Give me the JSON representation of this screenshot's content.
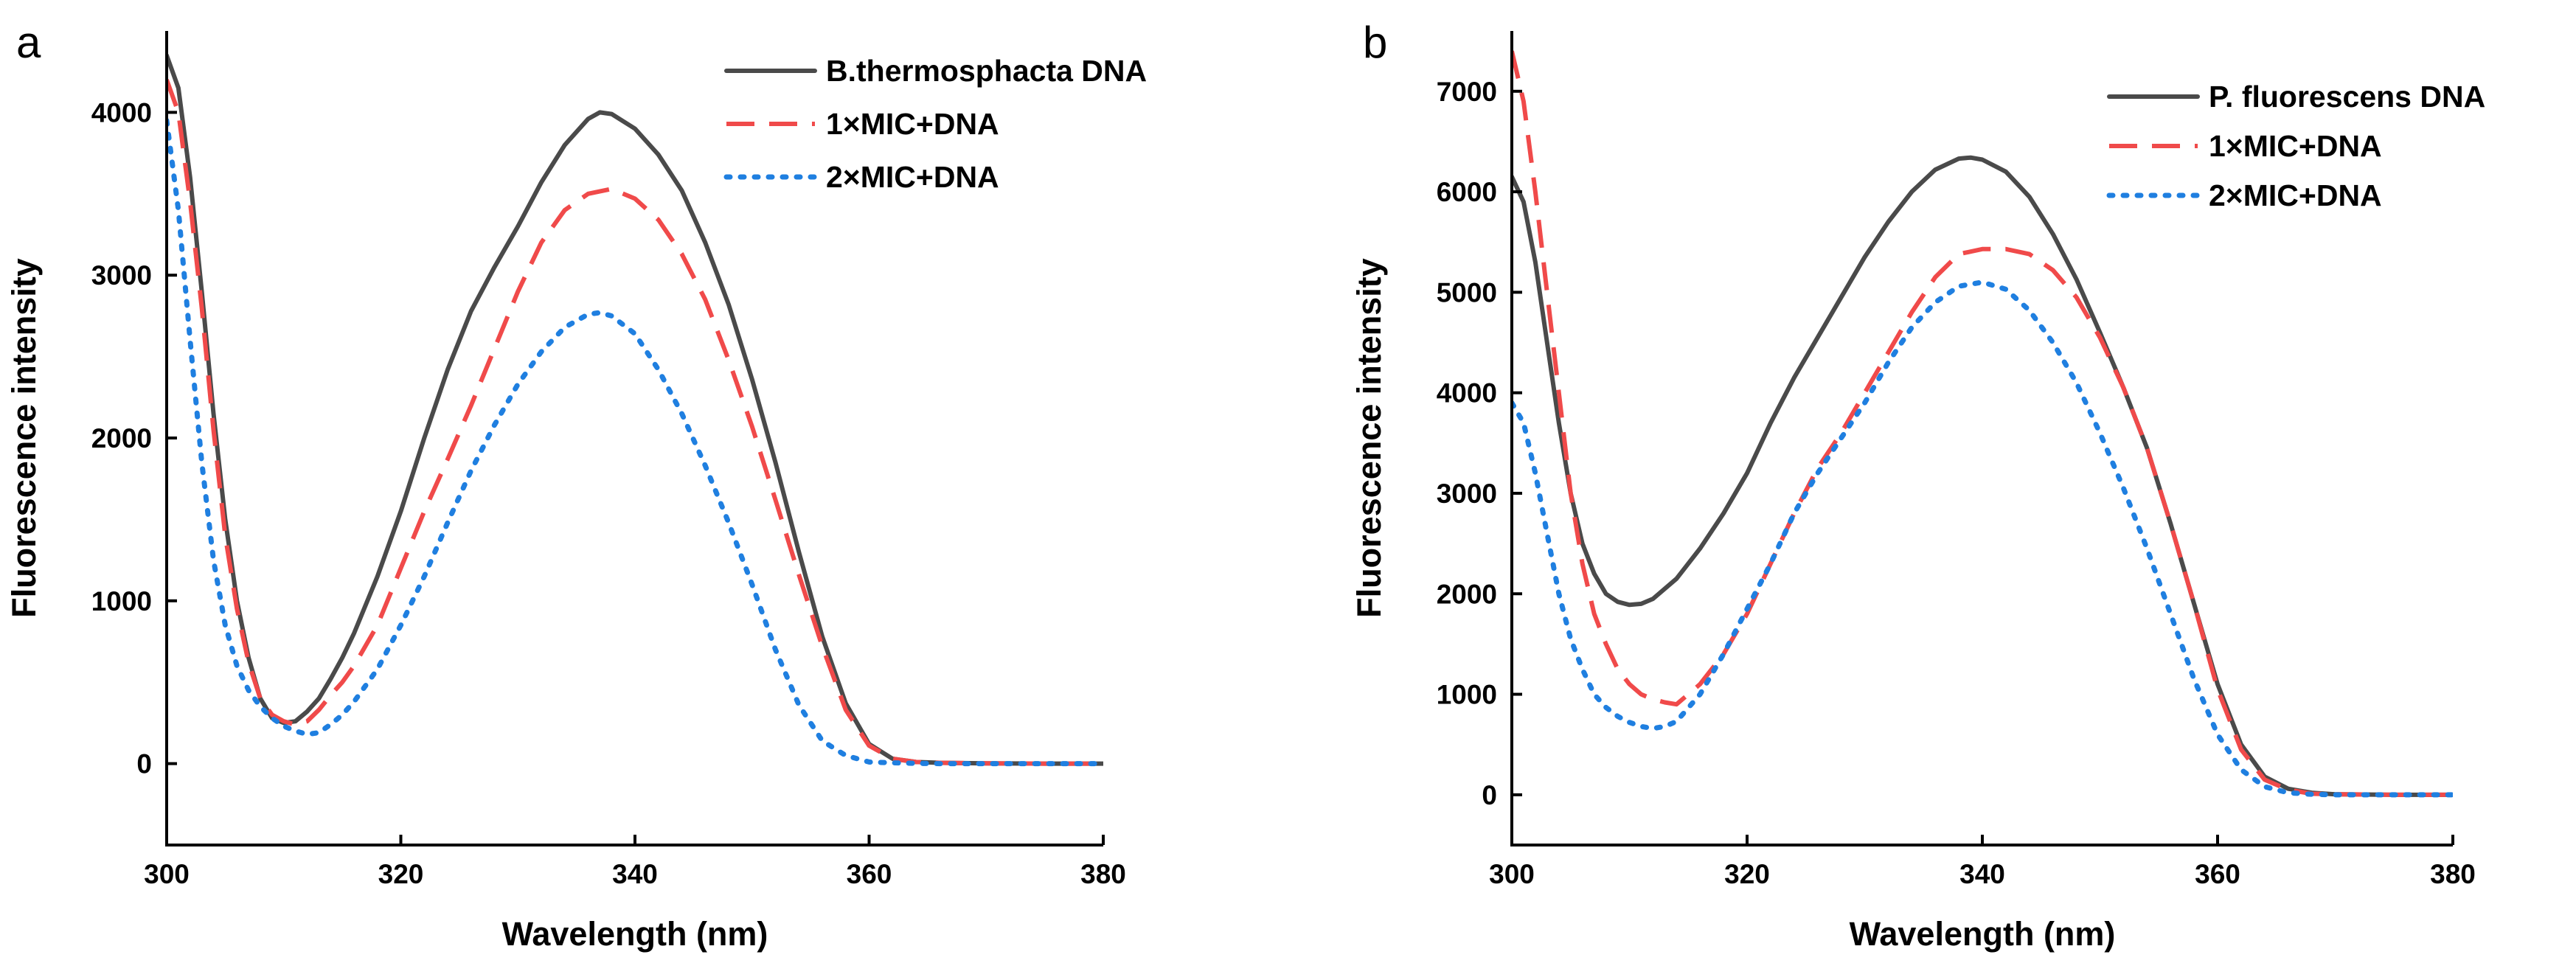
{
  "chart_data": [
    {
      "panel": "a",
      "type": "line",
      "xlabel": "Wavelength (nm)",
      "ylabel": "Fluorescence intensity",
      "xlim": [
        300,
        380
      ],
      "ylim": [
        -500,
        4500
      ],
      "xticks": [
        300,
        320,
        340,
        360,
        380
      ],
      "yticks": [
        0,
        1000,
        2000,
        3000,
        4000
      ],
      "legend_position": "top-right",
      "series": [
        {
          "name": "B.thermosphacta DNA",
          "color": "#4a4a4a",
          "style": "solid",
          "x": [
            300,
            301,
            302,
            303,
            304,
            305,
            306,
            307,
            308,
            309,
            310,
            311,
            312,
            313,
            314,
            315,
            316,
            318,
            320,
            322,
            324,
            326,
            328,
            330,
            332,
            334,
            336,
            337,
            338,
            340,
            342,
            344,
            346,
            348,
            350,
            352,
            354,
            356,
            358,
            360,
            362,
            364,
            366,
            370,
            375,
            380
          ],
          "y": [
            4350,
            4150,
            3600,
            2900,
            2150,
            1500,
            1000,
            650,
            400,
            280,
            250,
            260,
            320,
            400,
            520,
            650,
            800,
            1150,
            1550,
            2000,
            2420,
            2780,
            3050,
            3300,
            3570,
            3800,
            3960,
            4000,
            3990,
            3900,
            3740,
            3520,
            3200,
            2820,
            2360,
            1850,
            1300,
            780,
            370,
            120,
            30,
            10,
            5,
            2,
            0,
            0
          ]
        },
        {
          "name": "1×MIC+DNA",
          "color": "#f04a4a",
          "style": "dashed",
          "x": [
            300,
            301,
            302,
            303,
            304,
            305,
            306,
            307,
            308,
            309,
            310,
            311,
            312,
            313,
            314,
            315,
            316,
            318,
            320,
            322,
            324,
            326,
            328,
            330,
            332,
            334,
            336,
            338,
            340,
            342,
            344,
            346,
            348,
            350,
            352,
            354,
            356,
            358,
            360,
            362,
            364,
            366,
            370,
            375,
            380
          ],
          "y": [
            4200,
            4000,
            3450,
            2800,
            2050,
            1400,
            950,
            620,
            400,
            300,
            260,
            240,
            260,
            330,
            420,
            500,
            600,
            850,
            1200,
            1550,
            1870,
            2200,
            2550,
            2900,
            3200,
            3400,
            3500,
            3530,
            3470,
            3340,
            3130,
            2850,
            2480,
            2070,
            1620,
            1160,
            720,
            330,
            110,
            30,
            10,
            5,
            2,
            0,
            0
          ]
        },
        {
          "name": "2×MIC+DNA",
          "color": "#1f7fe0",
          "style": "dotted",
          "x": [
            300,
            301,
            302,
            303,
            304,
            305,
            306,
            307,
            308,
            309,
            310,
            311,
            312,
            313,
            314,
            315,
            316,
            318,
            320,
            322,
            324,
            326,
            328,
            330,
            332,
            334,
            336,
            337,
            338,
            340,
            342,
            344,
            346,
            348,
            350,
            352,
            354,
            356,
            358,
            360,
            362,
            364,
            366,
            370,
            375,
            380
          ],
          "y": [
            3950,
            3400,
            2600,
            1850,
            1250,
            850,
            600,
            450,
            350,
            280,
            230,
            200,
            180,
            190,
            240,
            300,
            380,
            580,
            850,
            1150,
            1480,
            1800,
            2080,
            2330,
            2530,
            2680,
            2760,
            2770,
            2750,
            2640,
            2420,
            2150,
            1830,
            1480,
            1100,
            700,
            360,
            140,
            50,
            10,
            5,
            2,
            0,
            0,
            0,
            0
          ]
        }
      ]
    },
    {
      "panel": "b",
      "type": "line",
      "xlabel": "Wavelength (nm)",
      "ylabel": "Fluorescence intensity",
      "xlim": [
        300,
        380
      ],
      "ylim": [
        -500,
        7600
      ],
      "xticks": [
        300,
        320,
        340,
        360,
        380
      ],
      "yticks": [
        0,
        1000,
        2000,
        3000,
        4000,
        5000,
        6000,
        7000
      ],
      "legend_position": "top-right",
      "series": [
        {
          "name": "P. fluorescens DNA",
          "color": "#4a4a4a",
          "style": "solid",
          "x": [
            300,
            301,
            302,
            303,
            304,
            305,
            306,
            307,
            308,
            309,
            310,
            311,
            312,
            314,
            316,
            318,
            320,
            322,
            324,
            326,
            328,
            330,
            332,
            334,
            336,
            338,
            339,
            340,
            342,
            344,
            346,
            348,
            350,
            352,
            354,
            356,
            358,
            360,
            362,
            364,
            366,
            368,
            370,
            375,
            380
          ],
          "y": [
            6150,
            5900,
            5300,
            4500,
            3700,
            3000,
            2500,
            2200,
            2000,
            1920,
            1890,
            1900,
            1950,
            2150,
            2450,
            2800,
            3200,
            3700,
            4150,
            4550,
            4950,
            5350,
            5700,
            6000,
            6220,
            6330,
            6340,
            6320,
            6200,
            5950,
            5580,
            5130,
            4600,
            4050,
            3450,
            2700,
            1900,
            1100,
            500,
            180,
            60,
            20,
            5,
            0,
            0
          ]
        },
        {
          "name": "1×MIC+DNA",
          "color": "#f04a4a",
          "style": "dashed",
          "x": [
            300,
            301,
            302,
            303,
            304,
            305,
            306,
            307,
            308,
            309,
            310,
            311,
            312,
            313,
            314,
            316,
            318,
            320,
            322,
            324,
            326,
            328,
            330,
            332,
            334,
            336,
            338,
            340,
            342,
            344,
            346,
            348,
            350,
            352,
            354,
            356,
            358,
            360,
            362,
            364,
            366,
            368,
            370,
            375,
            380
          ],
          "y": [
            7400,
            6900,
            6000,
            5000,
            4000,
            3000,
            2300,
            1800,
            1500,
            1250,
            1100,
            1000,
            950,
            920,
            900,
            1100,
            1400,
            1800,
            2300,
            2800,
            3250,
            3600,
            4000,
            4400,
            4800,
            5150,
            5380,
            5430,
            5430,
            5380,
            5220,
            4950,
            4550,
            4050,
            3450,
            2700,
            1900,
            1050,
            450,
            150,
            50,
            10,
            5,
            0,
            0
          ]
        },
        {
          "name": "2×MIC+DNA",
          "color": "#1f7fe0",
          "style": "dotted",
          "x": [
            300,
            301,
            302,
            303,
            304,
            305,
            306,
            307,
            308,
            309,
            310,
            311,
            312,
            313,
            314,
            316,
            318,
            320,
            322,
            324,
            326,
            328,
            330,
            332,
            334,
            336,
            338,
            340,
            342,
            344,
            346,
            348,
            350,
            352,
            354,
            356,
            358,
            360,
            362,
            364,
            366,
            368,
            370,
            375,
            380
          ],
          "y": [
            3900,
            3700,
            3200,
            2600,
            2000,
            1550,
            1250,
            1000,
            870,
            780,
            720,
            680,
            660,
            680,
            730,
            1000,
            1400,
            1850,
            2300,
            2800,
            3200,
            3550,
            3900,
            4300,
            4650,
            4900,
            5060,
            5100,
            5030,
            4820,
            4500,
            4100,
            3600,
            3050,
            2450,
            1800,
            1150,
            600,
            250,
            80,
            20,
            5,
            0,
            0,
            0
          ]
        }
      ]
    }
  ]
}
